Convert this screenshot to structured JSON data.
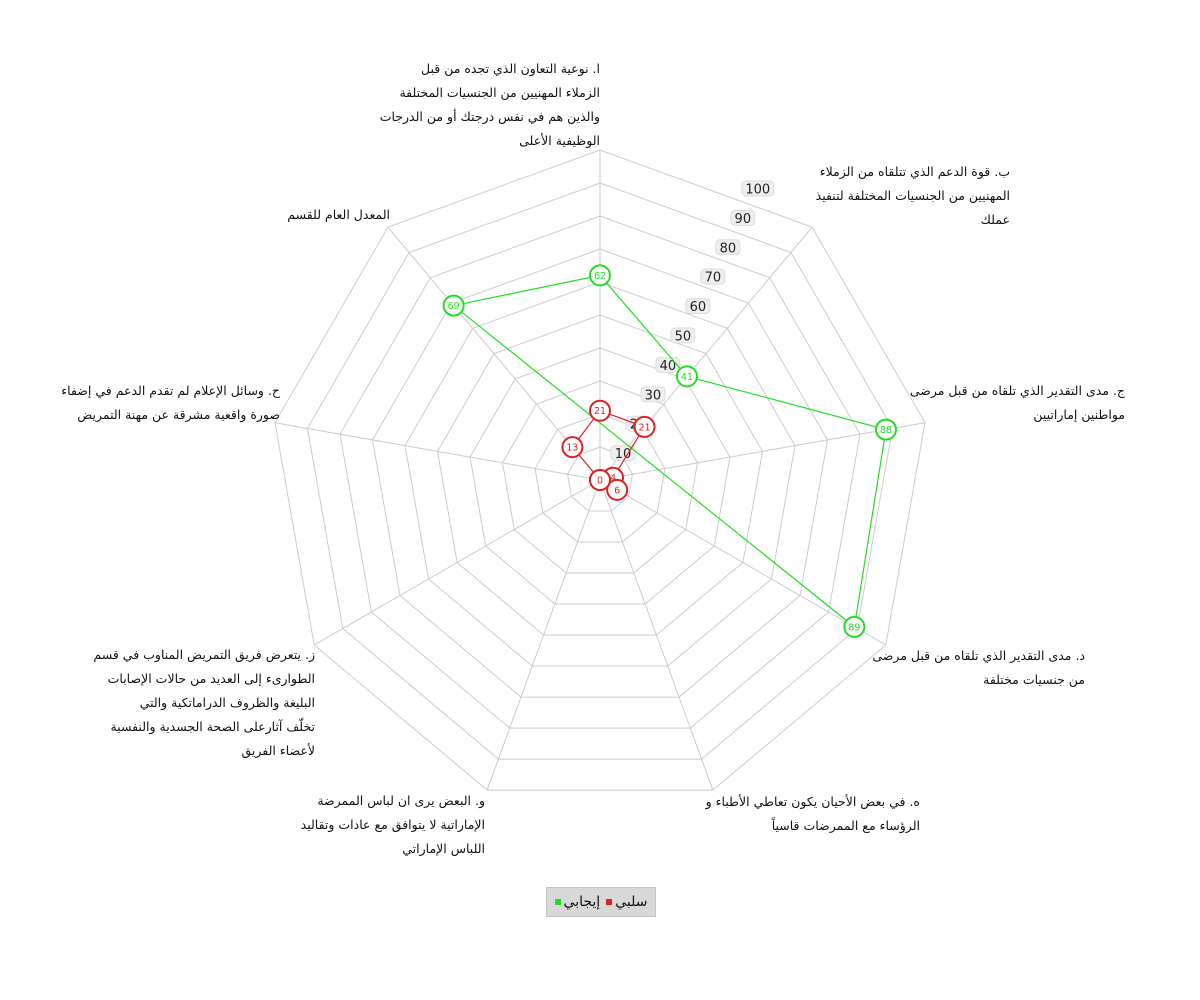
{
  "chart_data": {
    "type": "radar",
    "rmin": 0,
    "rmax": 100,
    "ticks": [
      10,
      20,
      30,
      40,
      50,
      60,
      70,
      80,
      90,
      100
    ],
    "grid": true,
    "legend_position": "bottom",
    "axes": [
      {
        "lines": [
          "ا. نوعية التعاون الذي تجده من قبل",
          "الزملاء المهنيين من الجنسيات المختلفة",
          "والذين هم في نفس درجتك أو من الدرجات",
          "الوظيفية الأعلى"
        ]
      },
      {
        "lines": [
          "ب. قوة الدعم الذي تتلقاه من الزملاء",
          "المهنيين من الجنسيات المختلفة لتنفيذ",
          "عملك"
        ]
      },
      {
        "lines": [
          "ج. مدى التقدير الذي تلقاه من قبل مرضى",
          "مواطنين إماراتيين"
        ]
      },
      {
        "lines": [
          "د. مدى التقدير الذي تلقاه من قبل مرضى",
          "من جنسيات مختلفة"
        ]
      },
      {
        "lines": [
          "ه. في بعض الأحيان يكون تعاطي الأطباء و",
          "الرؤساء مع الممرضات قاسياً"
        ]
      },
      {
        "lines": [
          "و. البعض يرى ان لباس الممرضة",
          "الإماراتية لا يتوافق مع عادات وتقاليد",
          "اللباس الإماراتي"
        ]
      },
      {
        "lines": [
          "ز. يتعرض فريق التمريض المناوب في قسم",
          "الطوارىء إلى العديد من حالات الإصابات",
          "البليغة والظروف الدراماتكية والتي",
          "تخلّف آثارعلى الصحة الجسدية والنفسية",
          "لأعضاء الفريق"
        ]
      },
      {
        "lines": [
          "ح. وسائل الإعلام لم تقدم الدعم في إضفاء",
          "صورة واقعية مشرقة عن مهنة التمريض"
        ]
      },
      {
        "lines": [
          "المعدل العام للقسم"
        ]
      }
    ],
    "series": [
      {
        "name": "إيجابي",
        "color": "#22dd22",
        "values": [
          62,
          41,
          88,
          89,
          null,
          null,
          null,
          null,
          69
        ]
      },
      {
        "name": "سلبي",
        "color": "#dd2222",
        "values": [
          21,
          21,
          4,
          6,
          0,
          null,
          null,
          0,
          13
        ]
      }
    ]
  }
}
